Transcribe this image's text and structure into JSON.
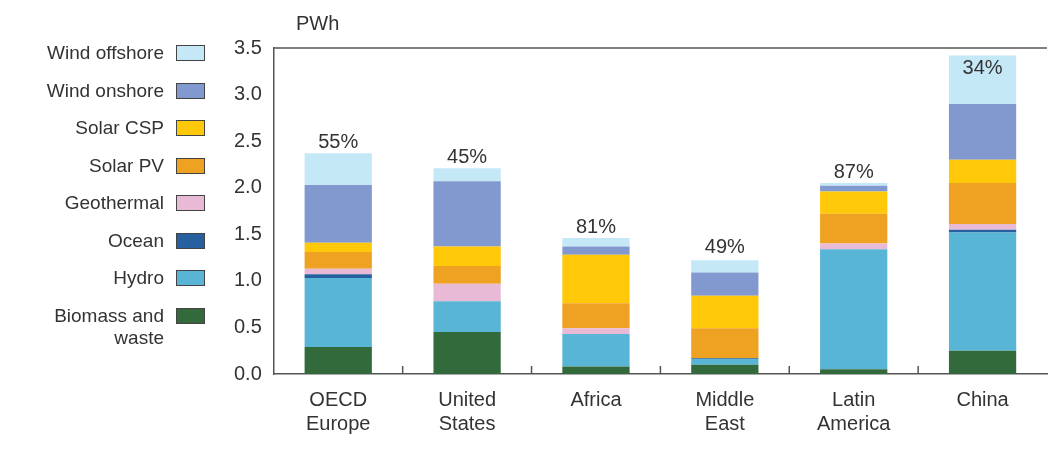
{
  "chart_data": {
    "type": "bar",
    "stacked": true,
    "ylabel": "PWh",
    "categories": [
      "OECD Europe",
      "United States",
      "Africa",
      "Middle East",
      "Latin America",
      "China"
    ],
    "series": [
      {
        "name": "Biomass and waste",
        "color": "#336a3c",
        "values": [
          0.29,
          0.45,
          0.08,
          0.1,
          0.05,
          0.25
        ]
      },
      {
        "name": "Hydro",
        "color": "#59b5d6",
        "values": [
          0.74,
          0.33,
          0.35,
          0.06,
          1.29,
          1.27
        ]
      },
      {
        "name": "Ocean",
        "color": "#27609e",
        "values": [
          0.04,
          0,
          0,
          0.01,
          0,
          0.03
        ]
      },
      {
        "name": "Geothermal",
        "color": "#e9bad6",
        "values": [
          0.06,
          0.19,
          0.06,
          0,
          0.06,
          0.06
        ]
      },
      {
        "name": "Solar PV",
        "color": "#efa121",
        "values": [
          0.18,
          0.19,
          0.27,
          0.32,
          0.32,
          0.44
        ]
      },
      {
        "name": "Solar CSP",
        "color": "#ffc808",
        "values": [
          0.1,
          0.21,
          0.52,
          0.35,
          0.24,
          0.25
        ]
      },
      {
        "name": "Wind onshore",
        "color": "#8299cf",
        "values": [
          0.62,
          0.7,
          0.09,
          0.25,
          0.06,
          0.6
        ]
      },
      {
        "name": "Wind offshore",
        "color": "#c5e8f7",
        "values": [
          0.34,
          0.14,
          0.09,
          0.13,
          0.03,
          0.52
        ]
      }
    ],
    "ylim": [
      0,
      3.5
    ],
    "yticks": [
      {
        "value": 0,
        "label": "0.0"
      },
      {
        "value": 0.5,
        "label": "0.5"
      },
      {
        "value": 1,
        "label": "1.0"
      },
      {
        "value": 1.5,
        "label": "1.5"
      },
      {
        "value": 2,
        "label": "2.0"
      },
      {
        "value": 2.5,
        "label": "2.5"
      },
      {
        "value": 3,
        "label": "3.0"
      },
      {
        "value": 3.5,
        "label": "3.5"
      }
    ],
    "grid": false,
    "legend": "left",
    "annotations": [
      {
        "text": "55%",
        "x": "OECD Europe",
        "y": 2.37
      },
      {
        "text": "45%",
        "x": "United States",
        "y": 2.21
      },
      {
        "text": "81%",
        "x": "Africa",
        "y": 1.46
      },
      {
        "text": "49%",
        "x": "Middle East",
        "y": 1.24
      },
      {
        "text": "87%",
        "x": "Latin America",
        "y": 2.05
      },
      {
        "text": "34%",
        "x": "China",
        "y": 3.42
      }
    ]
  }
}
